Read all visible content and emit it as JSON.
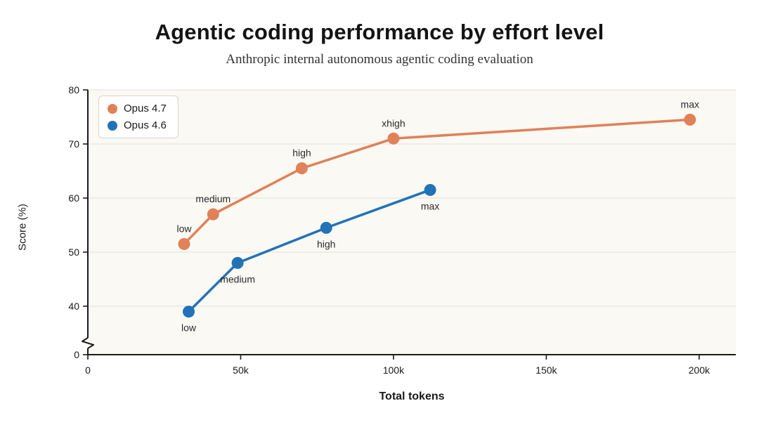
{
  "chart_data": {
    "type": "line",
    "title": "Agentic coding performance by effort level",
    "subtitle": "Anthropic internal autonomous agentic coding evaluation",
    "xlabel": "Total tokens",
    "ylabel": "Score (%)",
    "x_ticks_thousands": [
      0,
      50,
      100,
      150,
      200
    ],
    "x_tick_labels": [
      "0",
      "50k",
      "100k",
      "150k",
      "200k"
    ],
    "y_ticks": [
      40,
      50,
      60,
      70,
      80
    ],
    "y_origin_label": "0",
    "y_axis_break": true,
    "xlim_thousands": [
      0,
      212
    ],
    "ylim_visible": [
      40,
      80
    ],
    "grid": true,
    "legend_position": "top-left",
    "plot_bg_color": "#faf9f4",
    "grid_color": "#e9e6de",
    "axis_color": "#1a1a1a",
    "label_color": "#2b2b2b",
    "series": [
      {
        "name": "Opus 4.7",
        "color": "#e08159",
        "label_side": "above",
        "points": [
          {
            "x": 31.5,
            "y": 51.5,
            "label": "low"
          },
          {
            "x": 41,
            "y": 57,
            "label": "medium"
          },
          {
            "x": 70,
            "y": 65.5,
            "label": "high"
          },
          {
            "x": 100,
            "y": 71,
            "label": "xhigh"
          },
          {
            "x": 197,
            "y": 74.5,
            "label": "max"
          }
        ]
      },
      {
        "name": "Opus 4.6",
        "color": "#2272b8",
        "label_side": "below",
        "points": [
          {
            "x": 33,
            "y": 39,
            "label": "low"
          },
          {
            "x": 49,
            "y": 48,
            "label": "medium"
          },
          {
            "x": 78,
            "y": 54.5,
            "label": "high"
          },
          {
            "x": 112,
            "y": 61.5,
            "label": "max"
          }
        ]
      }
    ]
  }
}
